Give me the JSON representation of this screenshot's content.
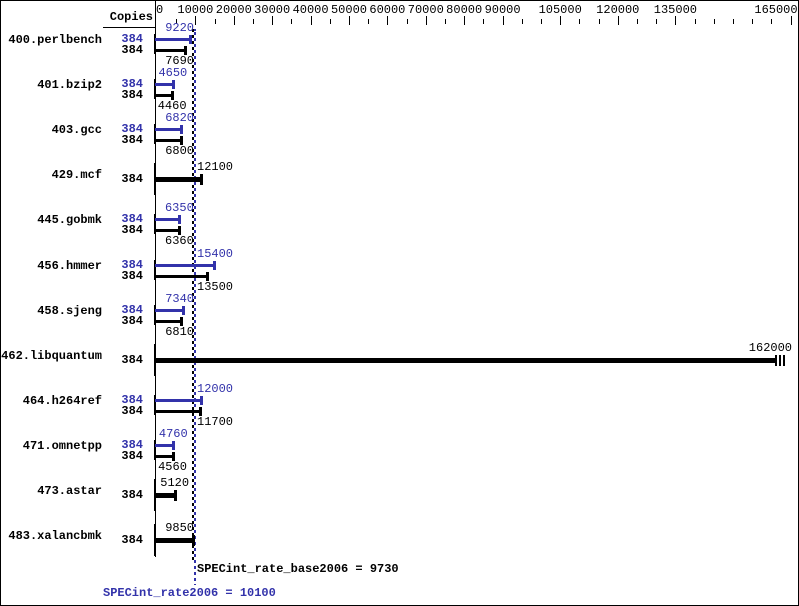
{
  "header": {
    "copies_label": "Copies"
  },
  "footer": {
    "base_summary": "SPECint_rate_base2006 = 9730",
    "peak_summary": "SPECint_rate2006 = 10100"
  },
  "colors": {
    "peak_blue": "#3232aa",
    "base_black": "#000000",
    "background": "#ffffff"
  },
  "chart_data": {
    "type": "bar",
    "orientation": "horizontal",
    "title": "",
    "xlabel": "",
    "ylabel": "Copies",
    "axis": {
      "min": 0,
      "max": 165000,
      "minor_step": 5000,
      "labeled_values": [
        0,
        10000,
        20000,
        30000,
        40000,
        50000,
        60000,
        70000,
        80000,
        90000,
        105000,
        120000,
        135000,
        165000
      ],
      "labels": [
        "0",
        "10000",
        "20000",
        "30000",
        "40000",
        "50000",
        "60000",
        "70000",
        "80000",
        "90000",
        "105000",
        "120000",
        "135000",
        "165000"
      ]
    },
    "benchmarks": [
      {
        "name": "400.perlbench",
        "bars": [
          {
            "tuning": "peak",
            "copies": "384",
            "value": 9220
          },
          {
            "tuning": "base",
            "copies": "384",
            "value": 7690
          }
        ]
      },
      {
        "name": "401.bzip2",
        "bars": [
          {
            "tuning": "peak",
            "copies": "384",
            "value": 4650
          },
          {
            "tuning": "base",
            "copies": "384",
            "value": 4460
          }
        ]
      },
      {
        "name": "403.gcc",
        "bars": [
          {
            "tuning": "peak",
            "copies": "384",
            "value": 6820
          },
          {
            "tuning": "base",
            "copies": "384",
            "value": 6800
          }
        ]
      },
      {
        "name": "429.mcf",
        "bars": [
          {
            "tuning": "base",
            "copies": "384",
            "value": 12100
          }
        ]
      },
      {
        "name": "445.gobmk",
        "bars": [
          {
            "tuning": "peak",
            "copies": "384",
            "value": 6350
          },
          {
            "tuning": "base",
            "copies": "384",
            "value": 6360
          }
        ]
      },
      {
        "name": "456.hmmer",
        "bars": [
          {
            "tuning": "peak",
            "copies": "384",
            "value": 15400
          },
          {
            "tuning": "base",
            "copies": "384",
            "value": 13500
          }
        ]
      },
      {
        "name": "458.sjeng",
        "bars": [
          {
            "tuning": "peak",
            "copies": "384",
            "value": 7340
          },
          {
            "tuning": "base",
            "copies": "384",
            "value": 6810
          }
        ]
      },
      {
        "name": "462.libquantum",
        "bars": [
          {
            "tuning": "base",
            "copies": "384",
            "value": 162000,
            "clipped": true
          }
        ]
      },
      {
        "name": "464.h264ref",
        "bars": [
          {
            "tuning": "peak",
            "copies": "384",
            "value": 12000
          },
          {
            "tuning": "base",
            "copies": "384",
            "value": 11700
          }
        ]
      },
      {
        "name": "471.omnetpp",
        "bars": [
          {
            "tuning": "peak",
            "copies": "384",
            "value": 4760
          },
          {
            "tuning": "base",
            "copies": "384",
            "value": 4560
          }
        ]
      },
      {
        "name": "473.astar",
        "bars": [
          {
            "tuning": "base",
            "copies": "384",
            "value": 5120
          }
        ]
      },
      {
        "name": "483.xalancbmk",
        "bars": [
          {
            "tuning": "base",
            "copies": "384",
            "value": 9850
          }
        ]
      }
    ],
    "reference_lines": [
      {
        "name": "SPECint_rate_base2006",
        "value": 9730,
        "tuning": "base"
      },
      {
        "name": "SPECint_rate2006",
        "value": 10100,
        "tuning": "peak"
      }
    ]
  }
}
